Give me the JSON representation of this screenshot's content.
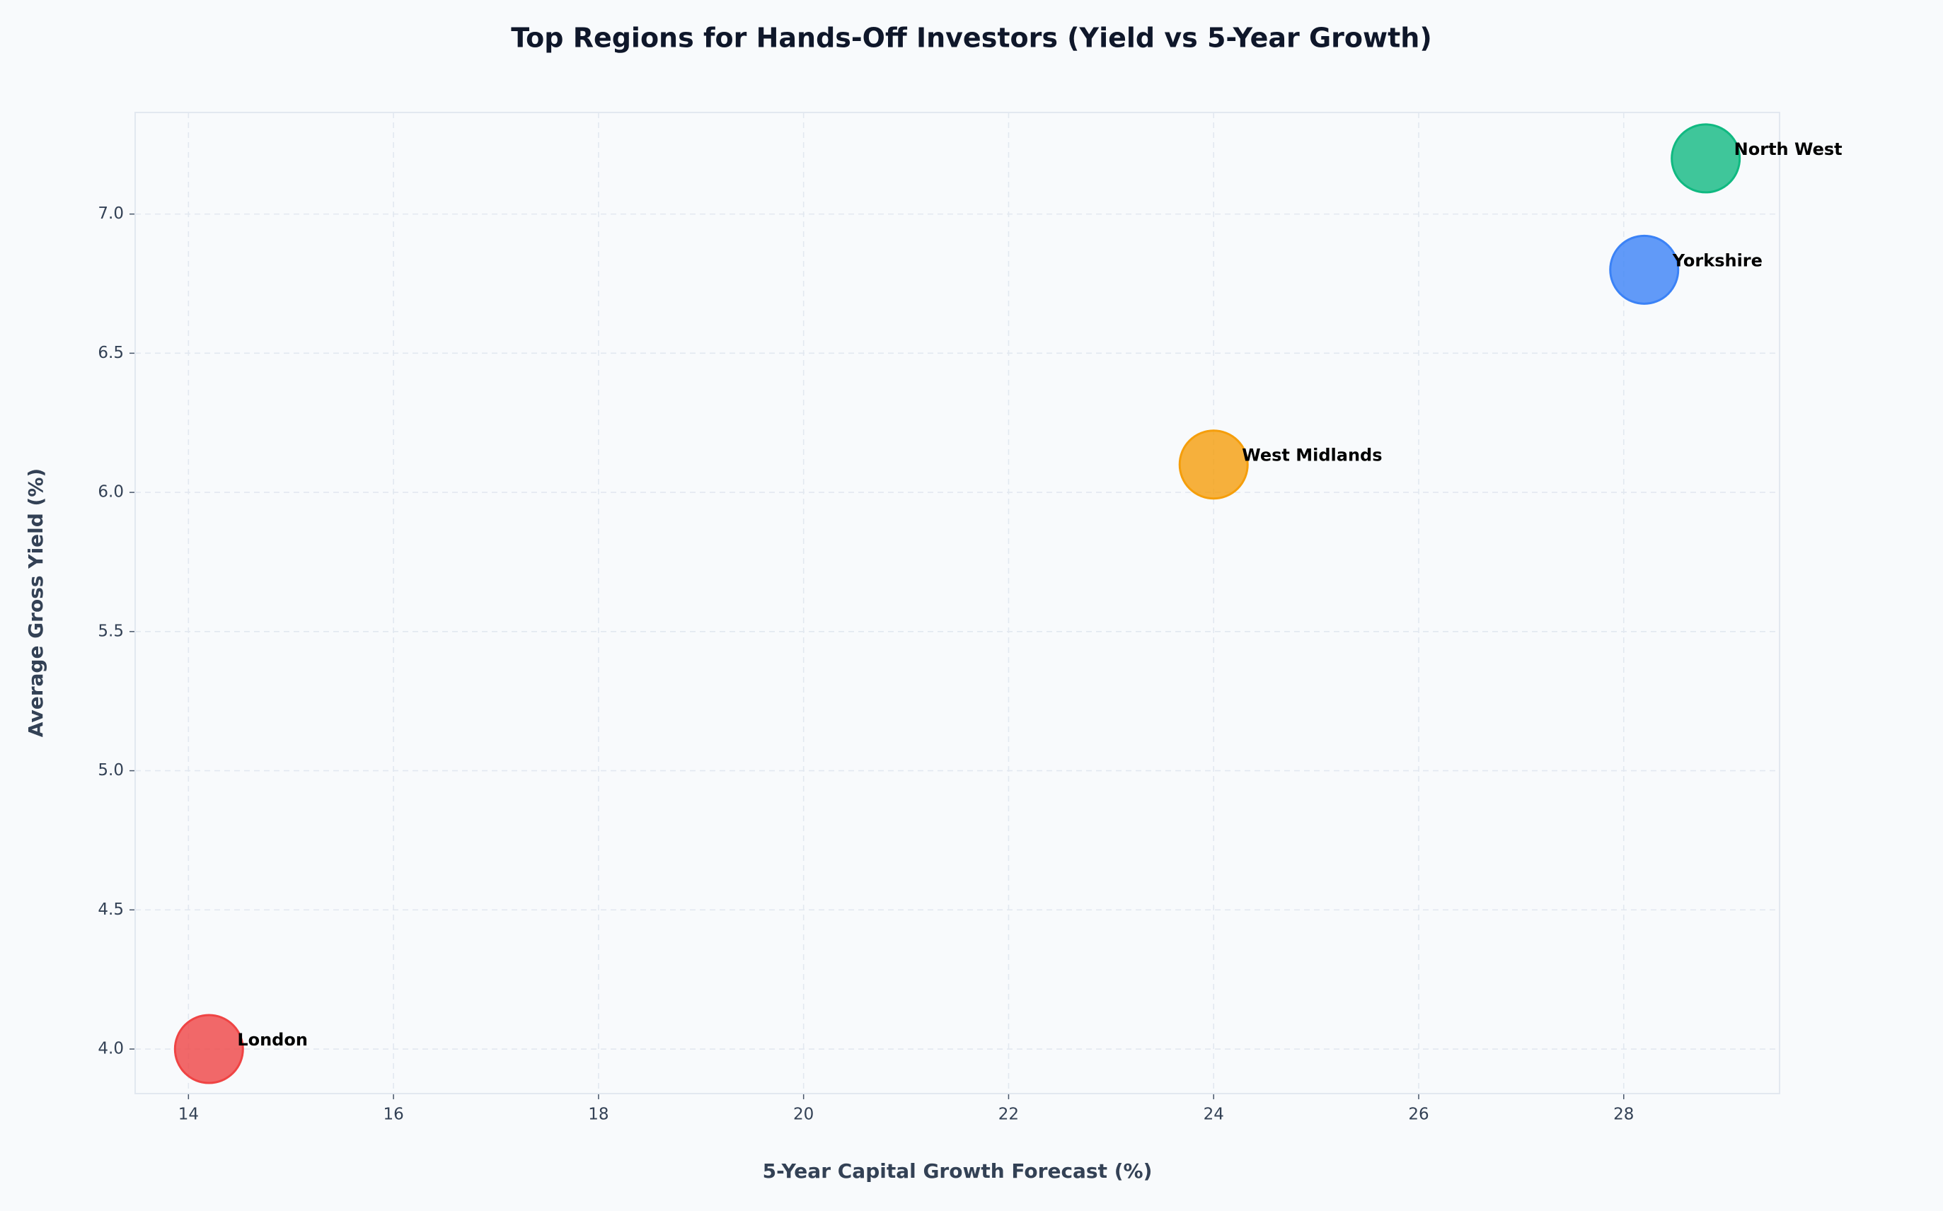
{
  "chart_data": {
    "type": "scatter",
    "title": "Top Regions for Hands-Off Investors (Yield vs 5-Year Growth)",
    "x_label": "5-Year Capital Growth Forecast (%)",
    "y_label": "Average Gross Yield (%)",
    "series": [
      {
        "name": "London",
        "color": "#ef4444",
        "x": [
          14.2
        ],
        "values": [
          4.0
        ]
      },
      {
        "name": "West Midlands",
        "color": "#f59e0b",
        "x": [
          24.0
        ],
        "values": [
          6.1
        ]
      },
      {
        "name": "Yorkshire",
        "color": "#3b82f6",
        "x": [
          28.2
        ],
        "values": [
          6.8
        ]
      },
      {
        "name": "North West",
        "color": "#10b981",
        "x": [
          28.8
        ],
        "values": [
          7.2
        ]
      }
    ],
    "xlim": [
      13.48,
      29.52
    ],
    "ylim": [
      3.84,
      7.365
    ],
    "xticks": [
      14,
      16,
      18,
      20,
      22,
      24,
      26,
      28
    ],
    "yticks": [
      {
        "value": 4,
        "label": "4.0"
      },
      {
        "value": 4.5,
        "label": "4.5"
      },
      {
        "value": 5,
        "label": "5.0"
      },
      {
        "value": 5.5,
        "label": "5.5"
      },
      {
        "value": 6,
        "label": "6.0"
      },
      {
        "value": 6.5,
        "label": "6.5"
      },
      {
        "value": 7,
        "label": "7.0"
      }
    ],
    "grid": true
  }
}
